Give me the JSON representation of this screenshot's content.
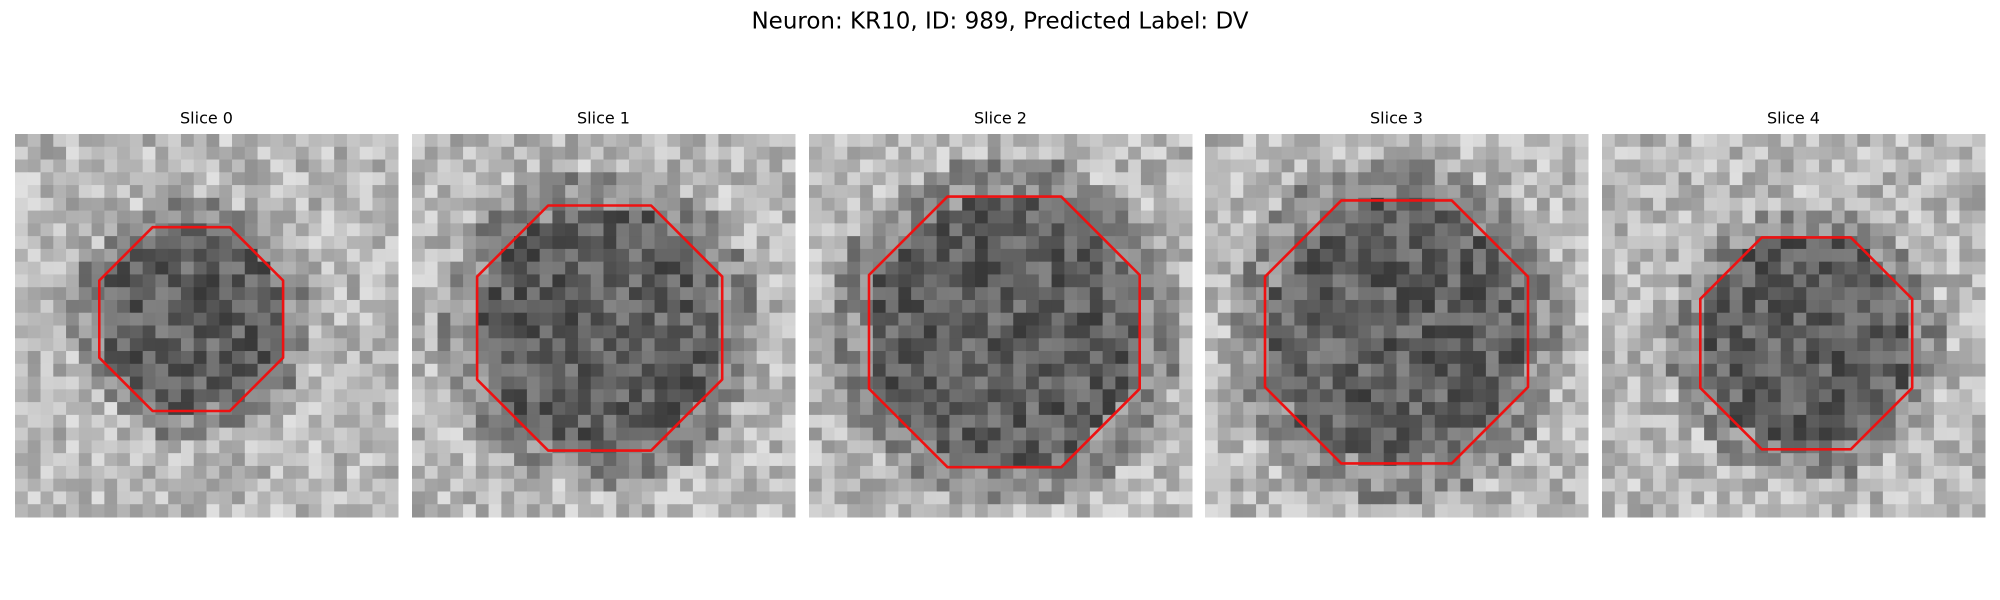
{
  "title": "Neuron: KR10, ID: 989, Predicted Label: DV",
  "panels": [
    {
      "title": "Slice 0"
    },
    {
      "title": "Slice 1"
    },
    {
      "title": "Slice 2"
    },
    {
      "title": "Slice 3"
    },
    {
      "title": "Slice 4"
    }
  ]
}
